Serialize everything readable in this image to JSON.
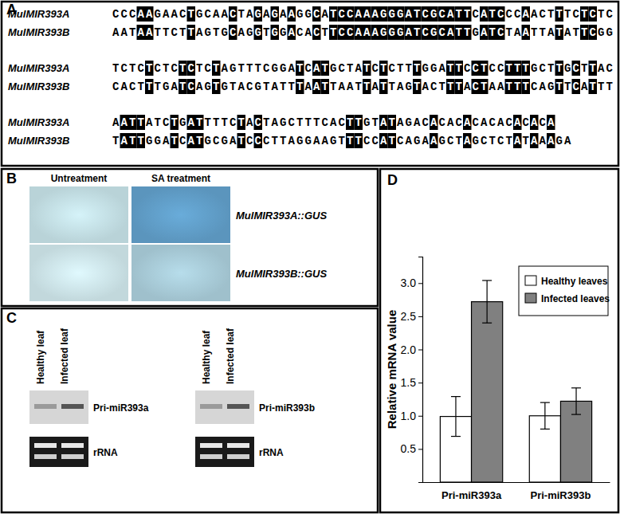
{
  "panel_a": {
    "panel_label": "A",
    "names": [
      "MulMIR393A",
      "MulMIR393B"
    ],
    "blocks": [
      [
        "CCCAAGAACTGCAACTAGAGAAGGCATCCAAAGGGATCGCATTCATCCCAACTTTCTCTC",
        "AATAATTCTTAGTGCAGGTGGACACTTCCAAAGGGATCGCATTGATCTAATTATATTCGG"
      ],
      [
        "TCTCTCTCTCTCTAGTTTCGGATCATGCTATCTCTTTGGATTCCTCCTTTGCTTGCTTAC",
        "CACTTTGATCAGTGTACGTATTTAATTAATTATTAGTACTTTACTAATTTCAGTTCATTT"
      ],
      [
        "AATTATCTGATTTTCTACTAGCTTTCACTTGTATAGACACACACACACACACA",
        "TATTGGATCATGCGATCCCTTAGGAAGTTTCCATCAGAAGCTAGCTCTATAAAGA"
      ]
    ]
  },
  "panel_b": {
    "panel_label": "B",
    "columns": [
      "Untreatment",
      "SA treatment"
    ],
    "rows": [
      "MulMIR393A::GUS",
      "MulMIR393B::GUS"
    ]
  },
  "panel_c": {
    "panel_label": "C",
    "blots": [
      {
        "lanes": [
          "Healthy leaf",
          "Infected leaf"
        ],
        "bands": [
          "Pri-miR393a",
          "rRNA"
        ]
      },
      {
        "lanes": [
          "Healthy leaf",
          "Infected leaf"
        ],
        "bands": [
          "Pri-miR393b",
          "rRNA"
        ]
      }
    ]
  },
  "chart_data": {
    "panel_label": "D",
    "type": "bar",
    "y_label": "Relative mRNA value",
    "categories": [
      "Pri-miR393a",
      "Pri-miR393b"
    ],
    "series": [
      {
        "name": "Healthy leaves",
        "color": "#ffffff",
        "values": [
          0.99,
          1.0
        ],
        "errors": [
          0.3,
          0.2
        ]
      },
      {
        "name": "Infected leaves",
        "color": "#808080",
        "values": [
          2.72,
          1.22
        ],
        "errors": [
          0.32,
          0.2
        ]
      }
    ],
    "ylim": [
      0,
      3.4
    ],
    "yticks": [
      {
        "value": 0.5,
        "label": "0.5"
      },
      {
        "value": 1.0,
        "label": "1.0"
      },
      {
        "value": 1.5,
        "label": "1.5"
      },
      {
        "value": 2.0,
        "label": "2.0"
      },
      {
        "value": 2.5,
        "label": "2.5"
      },
      {
        "value": 3.0,
        "label": "3.0"
      }
    ],
    "legend": "upper right"
  }
}
